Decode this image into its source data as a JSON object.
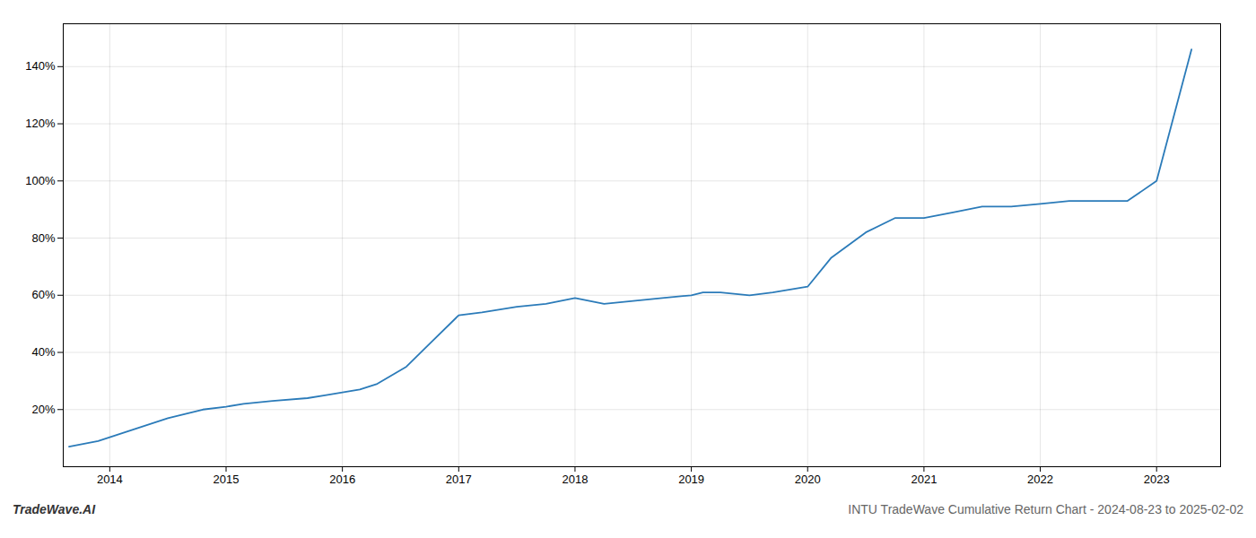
{
  "chart_data": {
    "type": "line",
    "title": "INTU TradeWave Cumulative Return Chart - 2024-08-23 to 2025-02-02",
    "annotations": [
      "TradeWave.AI"
    ],
    "x": [
      2013.65,
      2013.9,
      2014.2,
      2014.5,
      2014.8,
      2015.0,
      2015.15,
      2015.4,
      2015.7,
      2015.85,
      2016.0,
      2016.15,
      2016.3,
      2016.55,
      2016.75,
      2017.0,
      2017.2,
      2017.5,
      2017.75,
      2018.0,
      2018.25,
      2018.5,
      2018.75,
      2019.0,
      2019.1,
      2019.25,
      2019.5,
      2019.7,
      2019.85,
      2020.0,
      2020.2,
      2020.5,
      2020.75,
      2021.0,
      2021.25,
      2021.5,
      2021.75,
      2022.0,
      2022.25,
      2022.5,
      2022.75,
      2023.0,
      2023.3
    ],
    "values": [
      7,
      9,
      13,
      17,
      20,
      21,
      22,
      23,
      24,
      25,
      26,
      27,
      29,
      35,
      43,
      53,
      54,
      56,
      57,
      59,
      57,
      58,
      59,
      60,
      61,
      61,
      60,
      61,
      62,
      63,
      73,
      82,
      87,
      87,
      89,
      91,
      91,
      92,
      93,
      93,
      93,
      100,
      146
    ],
    "color": "#2b7bb9",
    "xlim": [
      2013.6,
      2023.55
    ],
    "xticks": [
      2014,
      2015,
      2016,
      2017,
      2018,
      2019,
      2020,
      2021,
      2022,
      2023
    ],
    "ylim": [
      0,
      155
    ],
    "yticks": [
      {
        "value": 20,
        "label": "20%"
      },
      {
        "value": 40,
        "label": "40%"
      },
      {
        "value": 60,
        "label": "60%"
      },
      {
        "value": 80,
        "label": "80%"
      },
      {
        "value": 100,
        "label": "100%"
      },
      {
        "value": 120,
        "label": "120%"
      },
      {
        "value": 140,
        "label": "140%"
      }
    ],
    "grid": true
  }
}
